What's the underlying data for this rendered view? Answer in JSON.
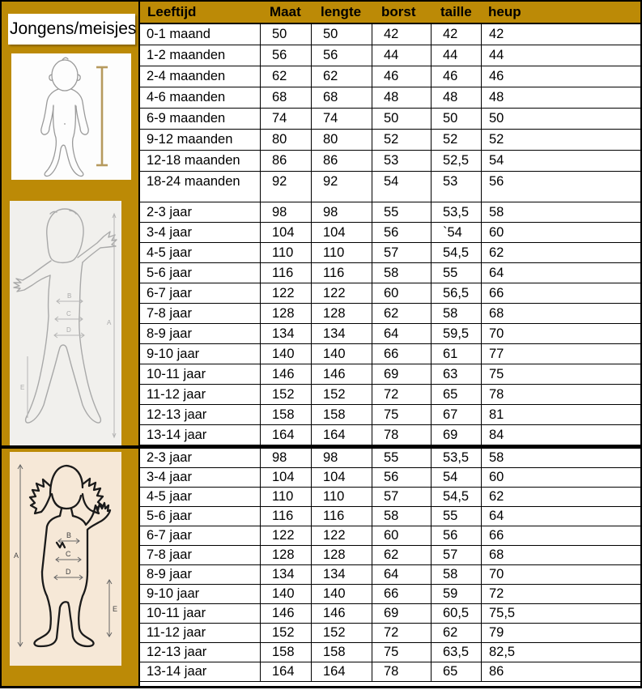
{
  "sidebar": {
    "label": "Jongens/meisjes",
    "figures": [
      "baby-measurement-figure",
      "boy-measurement-figure",
      "girl-measurement-figure"
    ],
    "figure_labels": [
      "A",
      "B",
      "C",
      "D",
      "E"
    ]
  },
  "table": {
    "headers": [
      "Leeftijd",
      "Maat",
      "lengte",
      "borst",
      "taille",
      "heup"
    ],
    "sections": [
      {
        "name": "babies",
        "rows": [
          [
            "0-1 maand",
            "50",
            "50",
            "42",
            "42",
            "42"
          ],
          [
            "1-2 maanden",
            "56",
            "56",
            "44",
            "44",
            "44"
          ],
          [
            "2-4 maanden",
            "62",
            "62",
            "46",
            "46",
            "46"
          ],
          [
            "4-6 maanden",
            "68",
            "68",
            "48",
            "48",
            "48"
          ],
          [
            "6-9 maanden",
            "74",
            "74",
            "50",
            "50",
            "50"
          ],
          [
            "9-12 maanden",
            "80",
            "80",
            "52",
            "52",
            "52"
          ],
          [
            "12-18 maanden",
            "86",
            "86",
            "53",
            "52,5",
            "54"
          ],
          [
            "18-24 maanden",
            "92",
            "92",
            "54",
            "53",
            "56"
          ]
        ]
      },
      {
        "name": "boys",
        "rows": [
          [
            "2-3 jaar",
            "98",
            "98",
            "55",
            "53,5",
            "58"
          ],
          [
            "3-4 jaar",
            "104",
            "104",
            "56",
            "`54",
            "60"
          ],
          [
            "4-5 jaar",
            "110",
            "110",
            "57",
            "54,5",
            "62"
          ],
          [
            "5-6 jaar",
            "116",
            "116",
            "58",
            "55",
            "64"
          ],
          [
            "6-7 jaar",
            "122",
            "122",
            "60",
            "56,5",
            "66"
          ],
          [
            "7-8 jaar",
            "128",
            "128",
            "62",
            "58",
            "68"
          ],
          [
            "8-9 jaar",
            "134",
            "134",
            "64",
            "59,5",
            "70"
          ],
          [
            "9-10 jaar",
            "140",
            "140",
            "66",
            "61",
            "77"
          ],
          [
            "10-11 jaar",
            "146",
            "146",
            "69",
            "63",
            "75"
          ],
          [
            "11-12 jaar",
            "152",
            "152",
            "72",
            "65",
            "78"
          ],
          [
            "12-13 jaar",
            "158",
            "158",
            "75",
            "67",
            "81"
          ],
          [
            "13-14 jaar",
            "164",
            "164",
            "78",
            "69",
            "84"
          ]
        ]
      },
      {
        "name": "girls",
        "rows": [
          [
            "2-3 jaar",
            "98",
            "98",
            "55",
            "53,5",
            "58"
          ],
          [
            "3-4 jaar",
            "104",
            "104",
            "56",
            "54",
            "60"
          ],
          [
            "4-5 jaar",
            "110",
            "110",
            "57",
            "54,5",
            "62"
          ],
          [
            "5-6 jaar",
            "116",
            "116",
            "58",
            "55",
            "64"
          ],
          [
            "6-7 jaar",
            "122",
            "122",
            "60",
            "56",
            "66"
          ],
          [
            "7-8 jaar",
            "128",
            "128",
            "62",
            "57",
            "68"
          ],
          [
            "8-9 jaar",
            "134",
            "134",
            "64",
            "58",
            "70"
          ],
          [
            "9-10 jaar",
            "140",
            "140",
            "66",
            "59",
            "72"
          ],
          [
            "10-11 jaar",
            "146",
            "146",
            "69",
            "60,5",
            "75,5"
          ],
          [
            "11-12 jaar",
            "152",
            "152",
            "72",
            "62",
            "79"
          ],
          [
            "12-13 jaar",
            "158",
            "158",
            "75",
            "63,5",
            "82,5"
          ],
          [
            "13-14 jaar",
            "164",
            "164",
            "78",
            "65",
            "86"
          ]
        ]
      }
    ]
  },
  "colors": {
    "gold": "#bc8a06",
    "boy-bg": "#f1f0ed",
    "girl-bg": "#f6e8d7",
    "measure-line": "#b69a5e",
    "table-border": "#000000"
  }
}
